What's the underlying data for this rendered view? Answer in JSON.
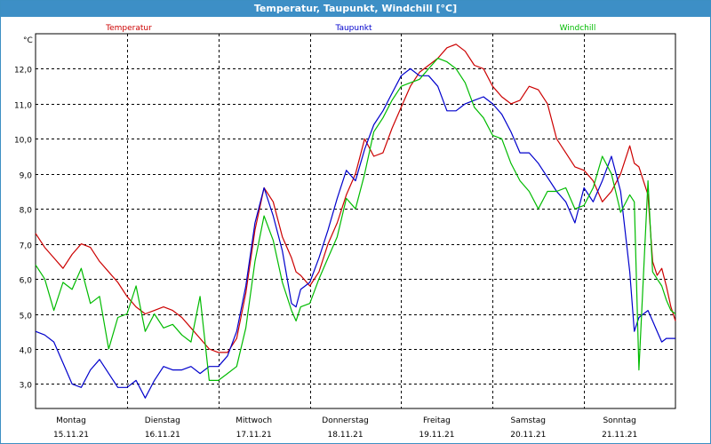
{
  "window": {
    "title": "Temperatur, Taupunkt, Windchill [°C]"
  },
  "chart_data": {
    "type": "line",
    "title": "Temperatur, Taupunkt, Windchill [°C]",
    "ylabel": "°C",
    "ylim": [
      2.3,
      13.0
    ],
    "yticks": [
      3.0,
      4.0,
      5.0,
      6.0,
      7.0,
      8.0,
      9.0,
      10.0,
      11.0,
      12.0
    ],
    "ytick_labels": [
      "3,0",
      "4,0",
      "5,0",
      "6,0",
      "7,0",
      "8,0",
      "9,0",
      "10,0",
      "11,0",
      "12,0"
    ],
    "xlim": [
      0,
      7
    ],
    "x_unit": "days since Montag 15.11.21 00:00",
    "days": [
      {
        "weekday": "Montag",
        "date": "15.11.21"
      },
      {
        "weekday": "Dienstag",
        "date": "16.11.21"
      },
      {
        "weekday": "Mittwoch",
        "date": "17.11.21"
      },
      {
        "weekday": "Donnerstag",
        "date": "18.11.21"
      },
      {
        "weekday": "Freitag",
        "date": "19.11.21"
      },
      {
        "weekday": "Samstag",
        "date": "20.11.21"
      },
      {
        "weekday": "Sonntag",
        "date": "21.11.21"
      }
    ],
    "grid": true,
    "legend_placement": "top",
    "series": [
      {
        "name": "Temperatur",
        "color": "#cc0000",
        "x": [
          0,
          0.1,
          0.2,
          0.3,
          0.4,
          0.5,
          0.6,
          0.7,
          0.8,
          0.9,
          1.0,
          1.1,
          1.2,
          1.3,
          1.4,
          1.5,
          1.6,
          1.7,
          1.8,
          1.9,
          2.0,
          2.1,
          2.2,
          2.3,
          2.4,
          2.5,
          2.6,
          2.7,
          2.8,
          2.85,
          2.9,
          3.0,
          3.1,
          3.2,
          3.3,
          3.4,
          3.5,
          3.6,
          3.7,
          3.8,
          3.9,
          4.0,
          4.1,
          4.2,
          4.3,
          4.4,
          4.5,
          4.6,
          4.7,
          4.8,
          4.9,
          5.0,
          5.1,
          5.2,
          5.3,
          5.4,
          5.5,
          5.6,
          5.7,
          5.8,
          5.9,
          6.0,
          6.1,
          6.2,
          6.3,
          6.4,
          6.5,
          6.55,
          6.6,
          6.7,
          6.75,
          6.8,
          6.85,
          6.9,
          6.95,
          7.0
        ],
        "values": [
          7.3,
          6.9,
          6.6,
          6.3,
          6.7,
          7.0,
          6.9,
          6.5,
          6.2,
          5.9,
          5.5,
          5.2,
          5.0,
          5.1,
          5.2,
          5.1,
          4.9,
          4.6,
          4.3,
          4.0,
          3.9,
          3.9,
          4.3,
          5.6,
          7.4,
          8.6,
          8.2,
          7.2,
          6.6,
          6.2,
          6.1,
          5.8,
          6.2,
          7.0,
          7.6,
          8.4,
          9.0,
          10.0,
          9.5,
          9.6,
          10.3,
          10.9,
          11.5,
          11.9,
          12.1,
          12.3,
          12.6,
          12.7,
          12.5,
          12.1,
          12.0,
          11.5,
          11.2,
          11.0,
          11.1,
          11.5,
          11.4,
          11.0,
          10.0,
          9.6,
          9.2,
          9.1,
          8.8,
          8.2,
          8.5,
          9.0,
          9.8,
          9.3,
          9.2,
          8.4,
          6.5,
          6.1,
          6.3,
          5.8,
          5.2,
          4.8
        ]
      },
      {
        "name": "Taupunkt",
        "color": "#0000cc",
        "x": [
          0,
          0.1,
          0.2,
          0.3,
          0.4,
          0.5,
          0.6,
          0.7,
          0.8,
          0.9,
          1.0,
          1.1,
          1.2,
          1.3,
          1.4,
          1.5,
          1.6,
          1.7,
          1.8,
          1.9,
          2.0,
          2.1,
          2.2,
          2.3,
          2.4,
          2.5,
          2.6,
          2.7,
          2.8,
          2.85,
          2.9,
          3.0,
          3.1,
          3.2,
          3.3,
          3.4,
          3.5,
          3.6,
          3.7,
          3.8,
          3.9,
          4.0,
          4.1,
          4.2,
          4.3,
          4.4,
          4.5,
          4.6,
          4.7,
          4.8,
          4.9,
          5.0,
          5.1,
          5.2,
          5.3,
          5.4,
          5.5,
          5.6,
          5.7,
          5.8,
          5.9,
          6.0,
          6.1,
          6.2,
          6.3,
          6.4,
          6.5,
          6.55,
          6.6,
          6.7,
          6.75,
          6.8,
          6.85,
          6.9,
          6.95,
          7.0
        ],
        "values": [
          4.5,
          4.4,
          4.2,
          3.6,
          3.0,
          2.9,
          3.4,
          3.7,
          3.3,
          2.9,
          2.9,
          3.1,
          2.6,
          3.1,
          3.5,
          3.4,
          3.4,
          3.5,
          3.3,
          3.5,
          3.5,
          3.8,
          4.5,
          5.8,
          7.6,
          8.6,
          7.8,
          6.8,
          5.3,
          5.2,
          5.7,
          5.9,
          6.6,
          7.4,
          8.3,
          9.1,
          8.8,
          9.7,
          10.4,
          10.8,
          11.3,
          11.8,
          12.0,
          11.8,
          11.8,
          11.5,
          10.8,
          10.8,
          11.0,
          11.1,
          11.2,
          11.0,
          10.7,
          10.2,
          9.6,
          9.6,
          9.3,
          8.9,
          8.5,
          8.2,
          7.6,
          8.6,
          8.2,
          8.8,
          9.5,
          8.5,
          6.2,
          4.5,
          4.9,
          5.1,
          4.8,
          4.5,
          4.2,
          4.3,
          4.3,
          4.3
        ]
      },
      {
        "name": "Windchill",
        "color": "#00bb00",
        "x": [
          0,
          0.1,
          0.2,
          0.3,
          0.4,
          0.5,
          0.6,
          0.7,
          0.8,
          0.9,
          1.0,
          1.1,
          1.2,
          1.3,
          1.4,
          1.5,
          1.6,
          1.7,
          1.8,
          1.9,
          2.0,
          2.1,
          2.2,
          2.3,
          2.4,
          2.5,
          2.6,
          2.7,
          2.8,
          2.85,
          2.9,
          3.0,
          3.1,
          3.2,
          3.3,
          3.4,
          3.5,
          3.6,
          3.7,
          3.8,
          3.9,
          4.0,
          4.1,
          4.2,
          4.3,
          4.4,
          4.5,
          4.6,
          4.7,
          4.8,
          4.9,
          5.0,
          5.1,
          5.2,
          5.3,
          5.4,
          5.5,
          5.6,
          5.7,
          5.8,
          5.9,
          6.0,
          6.1,
          6.2,
          6.3,
          6.4,
          6.5,
          6.55,
          6.6,
          6.7,
          6.75,
          6.8,
          6.85,
          6.9,
          6.95,
          7.0
        ],
        "values": [
          6.4,
          6.0,
          5.1,
          5.9,
          5.7,
          6.3,
          5.3,
          5.5,
          4.0,
          4.9,
          5.0,
          5.8,
          4.5,
          5.0,
          4.6,
          4.7,
          4.4,
          4.2,
          5.5,
          3.1,
          3.1,
          3.3,
          3.5,
          4.6,
          6.5,
          7.8,
          7.1,
          5.9,
          5.1,
          4.8,
          5.2,
          5.3,
          6.0,
          6.6,
          7.2,
          8.3,
          8.0,
          9.0,
          10.2,
          10.6,
          11.1,
          11.5,
          11.6,
          11.7,
          12.0,
          12.3,
          12.2,
          12.0,
          11.6,
          10.9,
          10.6,
          10.1,
          10.0,
          9.3,
          8.8,
          8.5,
          8.0,
          8.5,
          8.5,
          8.6,
          8.0,
          8.1,
          8.6,
          9.5,
          9.0,
          7.9,
          8.4,
          8.2,
          3.4,
          8.8,
          6.2,
          6.0,
          5.8,
          5.4,
          5.1,
          5.0
        ]
      }
    ]
  }
}
